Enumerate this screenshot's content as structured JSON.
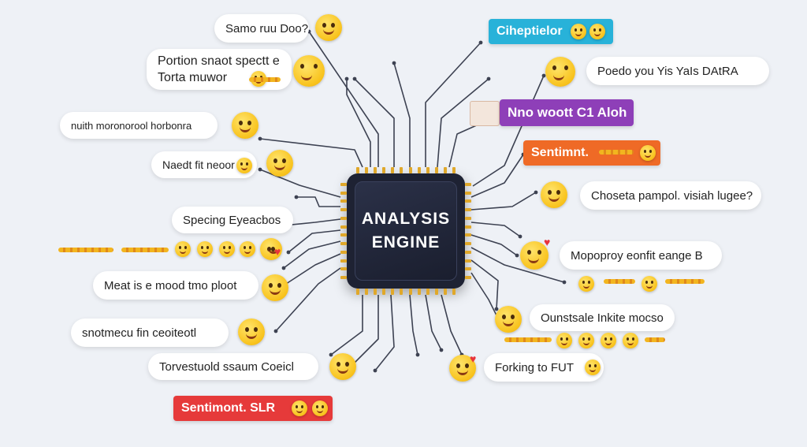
{
  "center": {
    "line1": "ANALYSIS",
    "line2": "ENGINE"
  },
  "left_bubbles": [
    {
      "text": "Samo ruu Doo?"
    },
    {
      "line1": "Portion snaot spectt e",
      "line2": "Torta muwor"
    },
    {
      "text": "nuith moronorool horbonra"
    },
    {
      "text": "Naedt fit neoor"
    },
    {
      "text": "Specing Eyeacbos"
    },
    {
      "text": "Meat is e mood tmo ploot"
    },
    {
      "text": "snotmecu fin ceoiteotl"
    },
    {
      "text": "Torvestuold ssaum Coeicl"
    }
  ],
  "left_tag": {
    "text": "Sentimont. SLR",
    "color": "#e63a3a"
  },
  "right_tags": [
    {
      "text": "Ciheptielor",
      "color": "#28b2d9"
    },
    {
      "text": "Nno woott C1 Aloh",
      "color": "#8e3fb8"
    },
    {
      "text": "Sentimnt.",
      "color": "#ef6a26"
    }
  ],
  "right_bubbles": [
    {
      "text": "Poedo you  Yis YaIs DAtRA"
    },
    {
      "text": "Choseta pampol. visiah lugee?"
    },
    {
      "text": "Mopoproy eonfit eange B"
    },
    {
      "text": "Ounstsale Inkite mocso"
    },
    {
      "text": "Forking to FUT"
    }
  ],
  "icons": {
    "face": "emoji-face-icon",
    "heart": "heart-icon",
    "chip": "processor-chip-icon"
  },
  "colors": {
    "background": "#eef1f6",
    "chip": "#1e2233",
    "pin": "#e0a82a",
    "wire": "#3d4252"
  }
}
